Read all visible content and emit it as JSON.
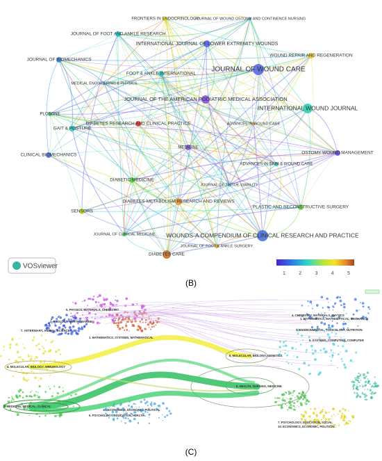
{
  "panel_b": {
    "journals": [
      "FRONTIERS IN ENDOCRINOLOGY",
      "JOURNAL OF WOUND OSTOMY AND CONTINENCE NURSING",
      "JOURNAL OF FOOT AND ANKLE RESEARCH",
      "INTERNATIONAL JOURNAL OF LOWER EXTREMITY WOUNDS",
      "JOURNAL OF BIOMECHANICS",
      "WOUND REPAIR AND REGENERATION",
      "JOURNAL OF WOUND CARE",
      "FOOT & ANKLE INTERNATIONAL",
      "MEDICAL ENGINEERING & PHYSICS",
      "JOURNAL OF THE AMERICAN PODIATRIC MEDICAL ASSOCIATION",
      "PLOSONE",
      "INTERNATIONAL WOUND JOURNAL",
      "DIABETES RESEARCH AND CLINICAL PRACTICE",
      "ADVANCES IN WOUND CARE",
      "GAIT & POSTURE",
      "MEDICINE",
      "OSTOMY WOUND MANAGEMENT",
      "CLINICAL BIOMECHANICS",
      "ADVANCES IN SKIN & WOUND CARE",
      "DIABETIC MEDICINE",
      "JOURNAL OF TISSUE VIABILITY",
      "DIABETES-METABOLISM RESEARCH AND REVIEWS",
      "SENSORS",
      "PLASTIC AND RECONSTRUCTIVE SURGERY",
      "JOURNAL OF CLINICAL MEDICINE",
      "WOUNDS-A COMPENDIUM OF CLINICAL RESEARCH AND PRACTICE",
      "JOURNAL OF FOOT & ANKLE SURGERY",
      "DIABETES CARE"
    ],
    "logo": "VOSviewer",
    "colorbar_ticks": [
      1,
      2,
      3,
      4,
      5
    ],
    "caption": "(B)"
  },
  "panel_c": {
    "labels": [
      "5. PHYSICS, MATERIALS, CHEMISTRY",
      "3. ECOLOGY, EARTH, MARINE",
      "7. VETERINARY, ANIMAL, SCIENCE",
      "1. MATHEMATICS, SYSTEMS, MATHEMATICAL",
      "4. MOLECULAR, BIOLOGY, IMMUNOLOGY",
      "2. MEDICINE, MEDICAL, CLINICAL",
      "6. PSYCHOLOGY, EDUCATION, HEALTH",
      "10. ECONOMICS, ECONOMIC, POLITICAL",
      "4. CHEMISTRY, MATERIALS, PHYSICS",
      "1. MATHEMATICS, MATHEMATICAL, MECHANICS",
      "3. ENVIRONMENTAL, TOXICOLOGY, NUTRITION",
      "5. SYSTEMS, COMPUTING, COMPUTER",
      "8. MOLECULAR, BIOLOGY, GENETICS",
      "6. HEALTH, NURSING, MEDICINE",
      "7. PSYCHOLOGY, EDUCATION, SOCIAL",
      "10. ECONOMICS, ECONOMIC, POLITICAL"
    ],
    "caption": "(C)"
  }
}
